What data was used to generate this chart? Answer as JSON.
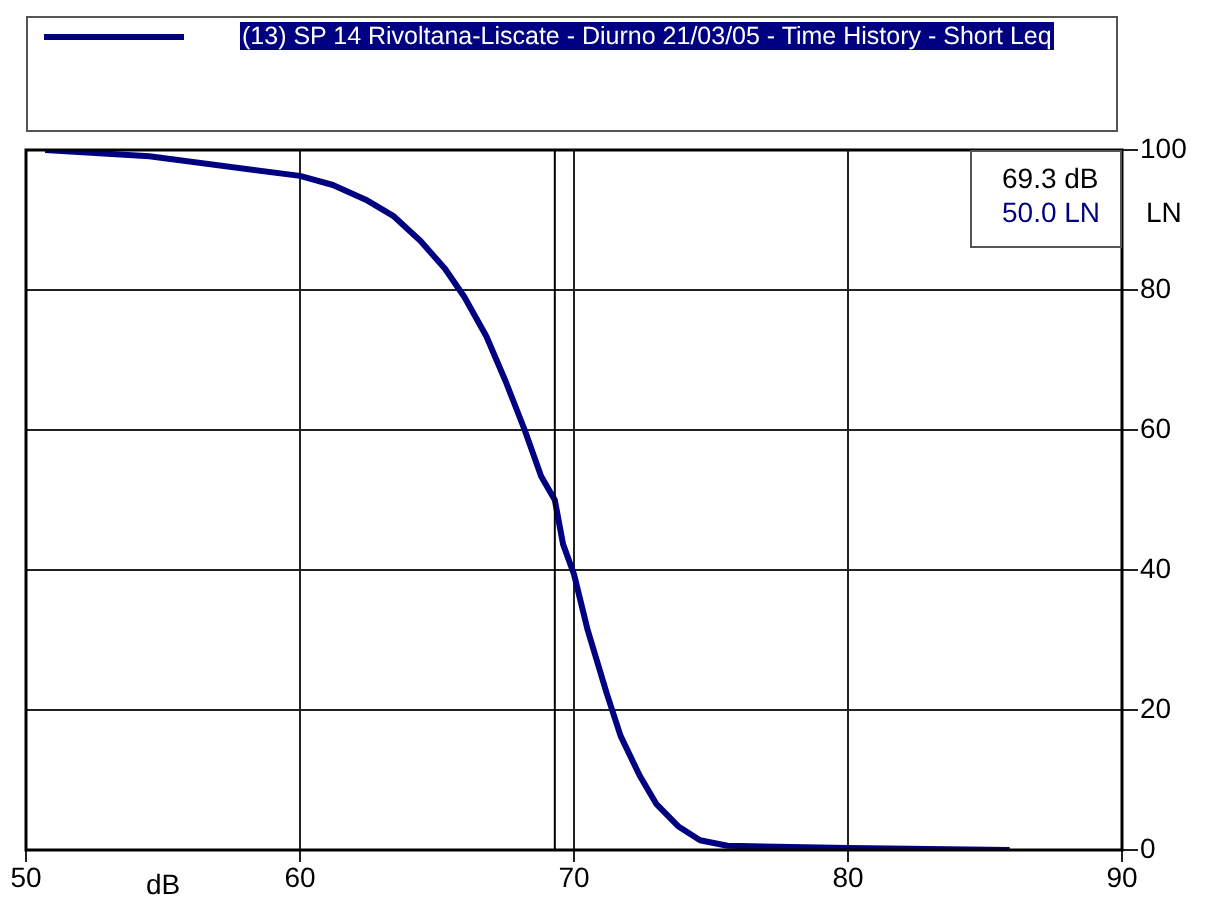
{
  "chart_data": {
    "type": "line",
    "xlabel": "dB",
    "ylabel": "LN",
    "legend": "top",
    "grid": true,
    "marker": "none",
    "line_style": "solid",
    "xlim": [
      50,
      90
    ],
    "xticks": [
      50,
      60,
      70,
      80,
      90
    ],
    "ylim": [
      0,
      100
    ],
    "yticks": [
      0,
      20,
      40,
      60,
      80,
      100
    ],
    "ref_lines": [
      {
        "axis": "x",
        "value": 69.3,
        "color": "#000000"
      }
    ],
    "annotations": [
      "69.3 dB",
      "50.0 LN"
    ],
    "series": [
      {
        "name": "(13) SP 14 Rivoltana-Liscate - Diurno 21/03/05  - Time History - Short Leq",
        "color": "#000080",
        "x": [
          50.7,
          54.5,
          60,
          61.2,
          62.4,
          63.4,
          64.4,
          65.3,
          66,
          66.8,
          67.5,
          68.2,
          68.8,
          69.3,
          69.6,
          70,
          70.5,
          71.2,
          71.7,
          72.4,
          73,
          73.8,
          74.6,
          75.6,
          80,
          85.9
        ],
        "values": [
          100,
          99.1,
          96.3,
          95,
          92.9,
          90.6,
          87,
          83,
          79,
          73.4,
          67,
          60,
          53.4,
          50,
          43.7,
          39.4,
          31.4,
          22.3,
          16.3,
          10.6,
          6.6,
          3.4,
          1.4,
          0.6,
          0.3,
          0
        ]
      }
    ]
  }
}
